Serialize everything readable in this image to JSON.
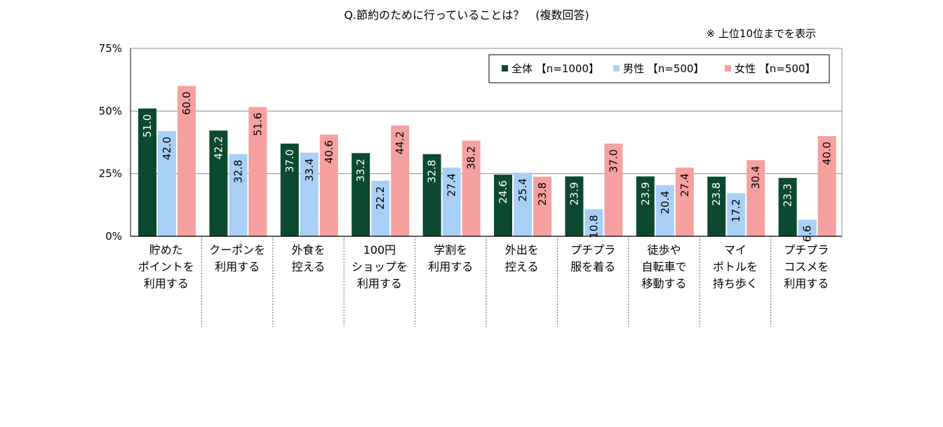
{
  "chart_data": {
    "type": "bar",
    "title": "Q.節約のために行っていることは？　(複数回答)",
    "note": "※ 上位10位までを表示",
    "ylim": [
      0,
      75
    ],
    "yticks": [
      {
        "value": 0,
        "label": "0%"
      },
      {
        "value": 25,
        "label": "25%"
      },
      {
        "value": 50,
        "label": "50%"
      },
      {
        "value": 75,
        "label": "75%"
      }
    ],
    "grid": true,
    "legend_position": "top-right",
    "categories": [
      [
        "貯めた",
        "ポイントを",
        "利用する"
      ],
      [
        "クーポンを",
        "利用する"
      ],
      [
        "外食を",
        "控える"
      ],
      [
        "100円",
        "ショップを",
        "利用する"
      ],
      [
        "学割を",
        "利用する"
      ],
      [
        "外出を",
        "控える"
      ],
      [
        "プチプラ",
        "服を着る"
      ],
      [
        "徒歩や",
        "自転車で",
        "移動する"
      ],
      [
        "マイ",
        "ボトルを",
        "持ち歩く"
      ],
      [
        "プチプラ",
        "コスメを",
        "利用する"
      ]
    ],
    "series": [
      {
        "name": "全体 【n=1000】",
        "color": "#0b4a30",
        "label_color": "#ffffff",
        "values": [
          51.0,
          42.2,
          37.0,
          33.2,
          32.8,
          24.6,
          23.9,
          23.9,
          23.8,
          23.3
        ],
        "labels": [
          "51.0",
          "42.2",
          "37.0",
          "33.2",
          "32.8",
          "24.6",
          "23.9",
          "23.9",
          "23.8",
          "23.3"
        ]
      },
      {
        "name": "男性 【n=500】",
        "color": "#a8d0f7",
        "label_color": "#000000",
        "values": [
          42.0,
          32.8,
          33.4,
          22.2,
          27.4,
          25.4,
          10.8,
          20.4,
          17.2,
          6.6
        ],
        "labels": [
          "42.0",
          "32.8",
          "33.4",
          "22.2",
          "27.4",
          "25.4",
          "10.8",
          "20.4",
          "17.2",
          "6.6"
        ]
      },
      {
        "name": "女性 【n=500】",
        "color": "#f6a0a0",
        "label_color": "#000000",
        "values": [
          60.0,
          51.6,
          40.6,
          44.2,
          38.2,
          23.8,
          37.0,
          27.4,
          30.4,
          40.0
        ],
        "labels": [
          "60.0",
          "51.6",
          "40.6",
          "44.2",
          "38.2",
          "23.8",
          "37.0",
          "27.4",
          "30.4",
          "40.0"
        ]
      }
    ]
  }
}
